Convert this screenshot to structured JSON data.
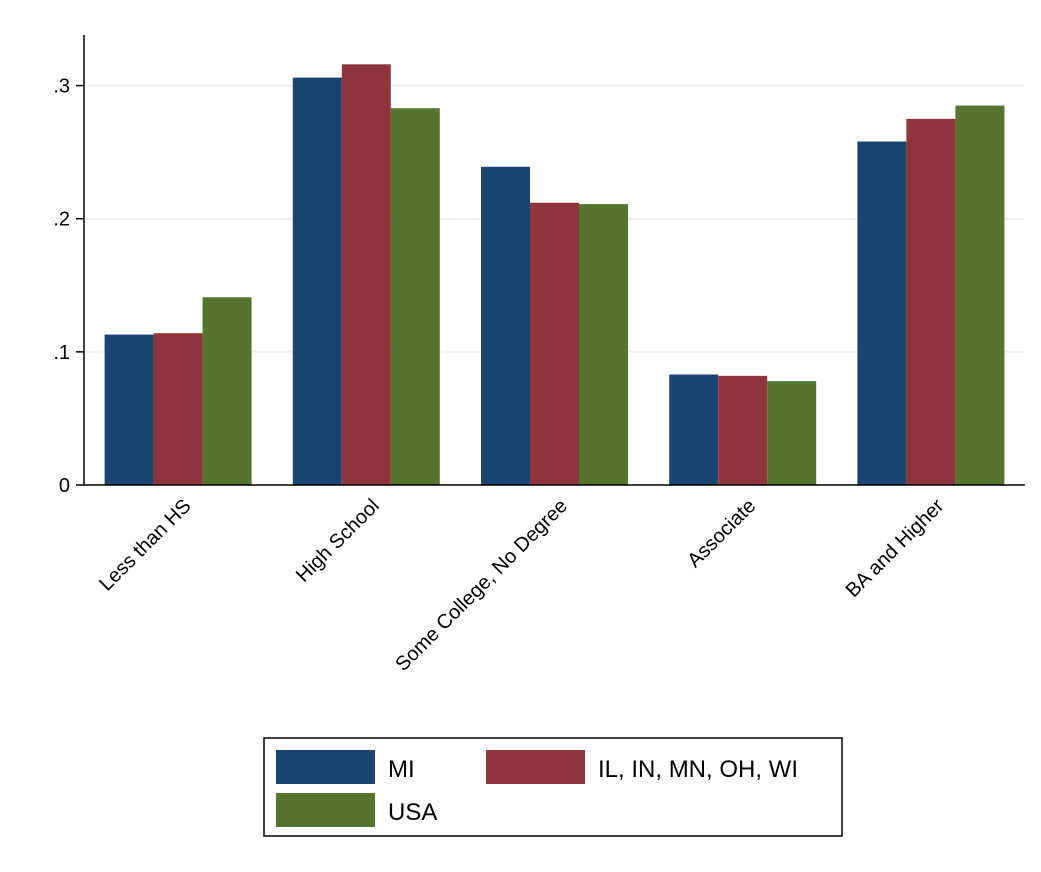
{
  "chart_data": {
    "type": "bar",
    "title": "",
    "xlabel": "",
    "ylabel": "",
    "categories": [
      "Less than HS",
      "High School",
      "Some College, No Degree",
      "Associate",
      "BA and Higher"
    ],
    "series": [
      {
        "name": "MI",
        "color": "#1b4471",
        "values": [
          0.113,
          0.306,
          0.239,
          0.083,
          0.258
        ]
      },
      {
        "name": "IL, IN, MN, OH, WI",
        "color": "#90353b",
        "values": [
          0.114,
          0.316,
          0.212,
          0.082,
          0.275
        ]
      },
      {
        "name": "USA",
        "color": "#55752f",
        "values": [
          0.141,
          0.283,
          0.211,
          0.078,
          0.285
        ]
      }
    ],
    "ylim": [
      0,
      0.338
    ],
    "yticks": [
      0,
      0.1,
      0.2,
      0.3
    ],
    "ytick_labels": [
      "0",
      ".1",
      ".2",
      ".3"
    ],
    "grid": true,
    "legend_position": "bottom"
  }
}
